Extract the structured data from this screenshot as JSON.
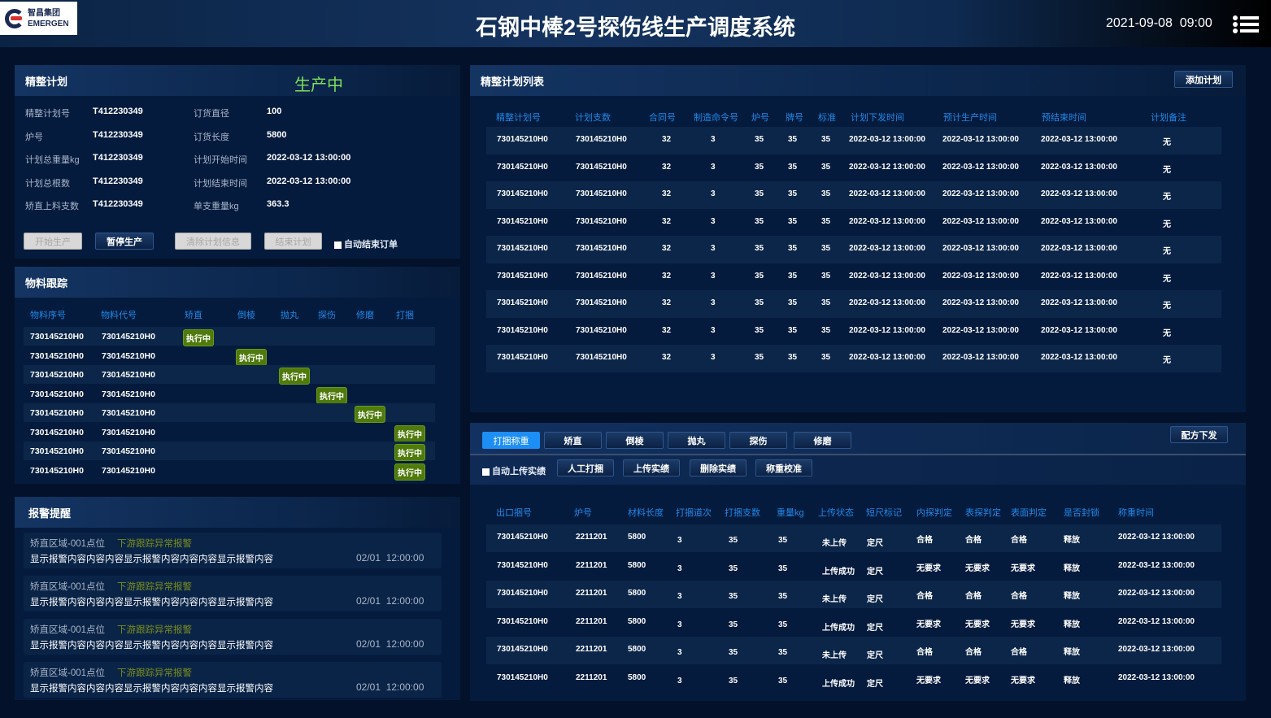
{
  "header": {
    "logo_cn": "智昌集团",
    "logo_en": "EMERGEN",
    "title": "石钢中棒2号探伤线生产调度系统",
    "datetime": "2021-09-08  09:00"
  },
  "plan": {
    "title": "精整计划",
    "status": "生产中",
    "status_color": "#7ee05a",
    "fields": [
      {
        "label": "精整计划号",
        "value": "T412230349"
      },
      {
        "label": "订货直径",
        "value": "100"
      },
      {
        "label": "炉号",
        "value": "T412230349"
      },
      {
        "label": "订货长度",
        "value": "5800"
      },
      {
        "label": "计划总重量kg",
        "value": "T412230349"
      },
      {
        "label": "计划开始时间",
        "value": "2022-03-12 13:00:00"
      },
      {
        "label": "计划总根数",
        "value": "T412230349"
      },
      {
        "label": "计划结束时间",
        "value": "2022-03-12 13:00:00"
      },
      {
        "label": "矫直上料支数",
        "value": "T412230349"
      },
      {
        "label": "单支重量kg",
        "value": "363.3"
      }
    ],
    "buttons": {
      "start": "开始生产",
      "pause": "暂停生产",
      "clear": "清除计划信息",
      "end": "结束计划"
    },
    "auto_end_label": "自动结束订单"
  },
  "tracking": {
    "title": "物料跟踪",
    "columns": [
      "物料序号",
      "物料代号",
      "矫直",
      "倒棱",
      "抛丸",
      "探伤",
      "修磨",
      "打捆"
    ],
    "tag": "执行中",
    "tag_color": "#4f7a0c",
    "rows": [
      {
        "seq": "730145210H0",
        "code": "730145210H0",
        "stage": 0
      },
      {
        "seq": "730145210H0",
        "code": "730145210H0",
        "stage": 1
      },
      {
        "seq": "730145210H0",
        "code": "730145210H0",
        "stage": 2
      },
      {
        "seq": "730145210H0",
        "code": "730145210H0",
        "stage": 3
      },
      {
        "seq": "730145210H0",
        "code": "730145210H0",
        "stage": 4
      },
      {
        "seq": "730145210H0",
        "code": "730145210H0",
        "stage": 5
      },
      {
        "seq": "730145210H0",
        "code": "730145210H0",
        "stage": 5
      },
      {
        "seq": "730145210H0",
        "code": "730145210H0",
        "stage": 5
      }
    ]
  },
  "alarms": {
    "title": "报警提醒",
    "items": [
      {
        "location": "矫直区域-001点位",
        "type": "下游跟踪异常报警",
        "content": "显示报警内容内容内容显示报警内容内容内容显示报警内容",
        "time": "02/01  12:00:00"
      },
      {
        "location": "矫直区域-001点位",
        "type": "下游跟踪异常报警",
        "content": "显示报警内容内容内容显示报警内容内容内容显示报警内容",
        "time": "02/01  12:00:00"
      },
      {
        "location": "矫直区域-001点位",
        "type": "下游跟踪异常报警",
        "content": "显示报警内容内容内容显示报警内容内容内容显示报警内容",
        "time": "02/01  12:00:00"
      },
      {
        "location": "矫直区域-001点位",
        "type": "下游跟踪异常报警",
        "content": "显示报警内容内容内容显示报警内容内容内容显示报警内容",
        "time": "02/01  12:00:00"
      }
    ]
  },
  "plan_list": {
    "title": "精整计划列表",
    "add_button": "添加计划",
    "columns": [
      "精整计划号",
      "计划支数",
      "合同号",
      "制造命令号",
      "炉号",
      "牌号",
      "标准",
      "计划下发时间",
      "预计生产时间",
      "预结束时间",
      "计划备注"
    ],
    "rows": [
      [
        "730145210H0",
        "730145210H0",
        "32",
        "3",
        "35",
        "35",
        "35",
        "2022-03-12 13:00:00",
        "2022-03-12 13:00:00",
        "2022-03-12 13:00:00",
        "无"
      ],
      [
        "730145210H0",
        "730145210H0",
        "32",
        "3",
        "35",
        "35",
        "35",
        "2022-03-12 13:00:00",
        "2022-03-12 13:00:00",
        "2022-03-12 13:00:00",
        "无"
      ],
      [
        "730145210H0",
        "730145210H0",
        "32",
        "3",
        "35",
        "35",
        "35",
        "2022-03-12 13:00:00",
        "2022-03-12 13:00:00",
        "2022-03-12 13:00:00",
        "无"
      ],
      [
        "730145210H0",
        "730145210H0",
        "32",
        "3",
        "35",
        "35",
        "35",
        "2022-03-12 13:00:00",
        "2022-03-12 13:00:00",
        "2022-03-12 13:00:00",
        "无"
      ],
      [
        "730145210H0",
        "730145210H0",
        "32",
        "3",
        "35",
        "35",
        "35",
        "2022-03-12 13:00:00",
        "2022-03-12 13:00:00",
        "2022-03-12 13:00:00",
        "无"
      ],
      [
        "730145210H0",
        "730145210H0",
        "32",
        "3",
        "35",
        "35",
        "35",
        "2022-03-12 13:00:00",
        "2022-03-12 13:00:00",
        "2022-03-12 13:00:00",
        "无"
      ],
      [
        "730145210H0",
        "730145210H0",
        "32",
        "3",
        "35",
        "35",
        "35",
        "2022-03-12 13:00:00",
        "2022-03-12 13:00:00",
        "2022-03-12 13:00:00",
        "无"
      ],
      [
        "730145210H0",
        "730145210H0",
        "32",
        "3",
        "35",
        "35",
        "35",
        "2022-03-12 13:00:00",
        "2022-03-12 13:00:00",
        "2022-03-12 13:00:00",
        "无"
      ],
      [
        "730145210H0",
        "730145210H0",
        "32",
        "3",
        "35",
        "35",
        "35",
        "2022-03-12 13:00:00",
        "2022-03-12 13:00:00",
        "2022-03-12 13:00:00",
        "无"
      ]
    ]
  },
  "process": {
    "tabs": [
      "打捆称重",
      "矫直",
      "倒棱",
      "抛丸",
      "探伤",
      "修磨"
    ],
    "active_tab": 0,
    "recipe_button": "配方下发",
    "auto_upload_label": "自动上传实绩",
    "actions": [
      "人工打捆",
      "上传实绩",
      "删除实绩",
      "称重校准"
    ],
    "columns": [
      "出口捆号",
      "炉号",
      "材料长度",
      "打捆道次",
      "打捆支数",
      "重量kg",
      "上传状态",
      "短尺标记",
      "内探判定",
      "表探判定",
      "表面判定",
      "是否封锁",
      "称重时间"
    ],
    "rows": [
      [
        "730145210H0",
        "2211201",
        "5800",
        "3",
        "35",
        "35",
        "未上传",
        "定尺",
        "合格",
        "合格",
        "合格",
        "释放",
        "2022-03-12 13:00:00"
      ],
      [
        "730145210H0",
        "2211201",
        "5800",
        "3",
        "35",
        "35",
        "上传成功",
        "定尺",
        "无要求",
        "无要求",
        "无要求",
        "释放",
        "2022-03-12 13:00:00"
      ],
      [
        "730145210H0",
        "2211201",
        "5800",
        "3",
        "35",
        "35",
        "未上传",
        "定尺",
        "合格",
        "合格",
        "合格",
        "释放",
        "2022-03-12 13:00:00"
      ],
      [
        "730145210H0",
        "2211201",
        "5800",
        "3",
        "35",
        "35",
        "上传成功",
        "定尺",
        "无要求",
        "无要求",
        "无要求",
        "释放",
        "2022-03-12 13:00:00"
      ],
      [
        "730145210H0",
        "2211201",
        "5800",
        "3",
        "35",
        "35",
        "未上传",
        "定尺",
        "合格",
        "合格",
        "合格",
        "释放",
        "2022-03-12 13:00:00"
      ],
      [
        "730145210H0",
        "2211201",
        "5800",
        "3",
        "35",
        "35",
        "上传成功",
        "定尺",
        "无要求",
        "无要求",
        "无要求",
        "释放",
        "2022-03-12 13:00:00"
      ]
    ]
  }
}
